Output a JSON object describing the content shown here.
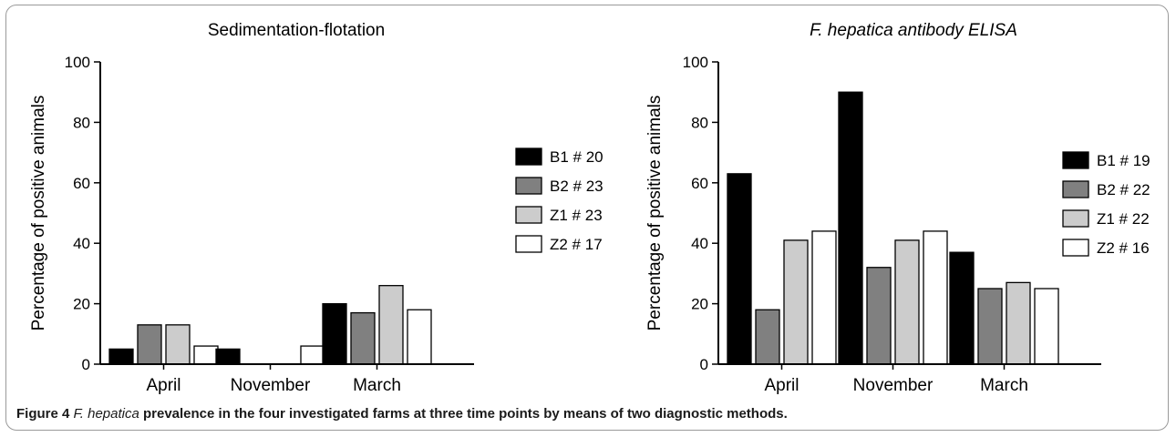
{
  "caption": {
    "label": "Figure 4",
    "italic": "F. hepatica",
    "text": " prevalence in the four investigated farms at three time points by means of two diagnostic methods."
  },
  "chart_data": [
    {
      "type": "bar",
      "title": "Sedimentation-flotation",
      "title_italic": false,
      "ylabel": "Percentage of positive animals",
      "xlabel": "",
      "ylim": [
        0,
        100
      ],
      "yticks": [
        0,
        20,
        40,
        60,
        80,
        100
      ],
      "categories": [
        "April",
        "November",
        "March"
      ],
      "legend_position": "right",
      "grid": false,
      "series": [
        {
          "name": "B1 # 20",
          "color": "#000000",
          "values": [
            5,
            5,
            20
          ]
        },
        {
          "name": "B2 # 23",
          "color": "#808080",
          "values": [
            13,
            0,
            17
          ]
        },
        {
          "name": "Z1 # 23",
          "color": "#cccccc",
          "values": [
            13,
            0,
            26
          ]
        },
        {
          "name": "Z2 # 17",
          "color": "#ffffff",
          "values": [
            6,
            6,
            18
          ]
        }
      ]
    },
    {
      "type": "bar",
      "title": "F. hepatica antibody ELISA",
      "title_italic": true,
      "ylabel": "Percentage of positive animals",
      "xlabel": "",
      "ylim": [
        0,
        100
      ],
      "yticks": [
        0,
        20,
        40,
        60,
        80,
        100
      ],
      "categories": [
        "April",
        "November",
        "March"
      ],
      "legend_position": "right",
      "grid": false,
      "series": [
        {
          "name": "B1 # 19",
          "color": "#000000",
          "values": [
            63,
            90,
            37
          ]
        },
        {
          "name": "B2 # 22",
          "color": "#808080",
          "values": [
            18,
            32,
            25
          ]
        },
        {
          "name": "Z1 # 22",
          "color": "#cccccc",
          "values": [
            41,
            41,
            27
          ]
        },
        {
          "name": "Z2 # 16",
          "color": "#ffffff",
          "values": [
            44,
            44,
            25
          ]
        }
      ]
    }
  ]
}
